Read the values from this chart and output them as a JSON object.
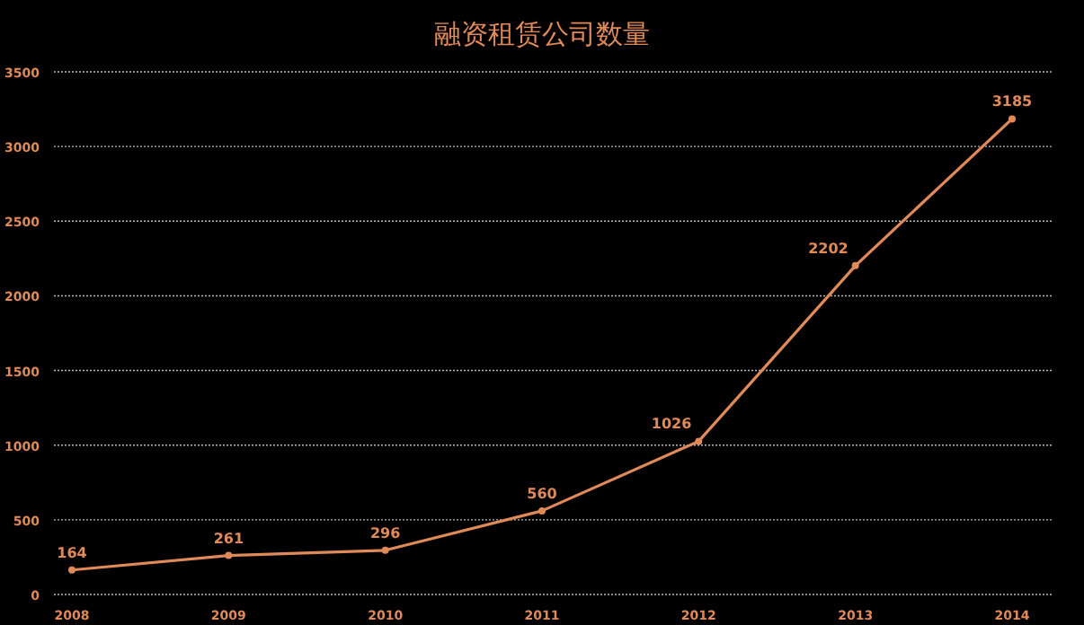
{
  "chart_data": {
    "type": "line",
    "title": "融资租赁公司数量",
    "categories": [
      "2008",
      "2009",
      "2010",
      "2011",
      "2012",
      "2013",
      "2014"
    ],
    "series": [
      {
        "color": "#e08a5a",
        "values": [
          164,
          261,
          296,
          560,
          1026,
          2202,
          3185
        ]
      }
    ],
    "ylim": [
      0,
      3500
    ],
    "yticks": [
      0,
      500,
      1000,
      1500,
      2000,
      2500,
      3000,
      3500
    ],
    "grid": "y",
    "data_labels": true,
    "marker": "circle",
    "line_style": "solid"
  }
}
